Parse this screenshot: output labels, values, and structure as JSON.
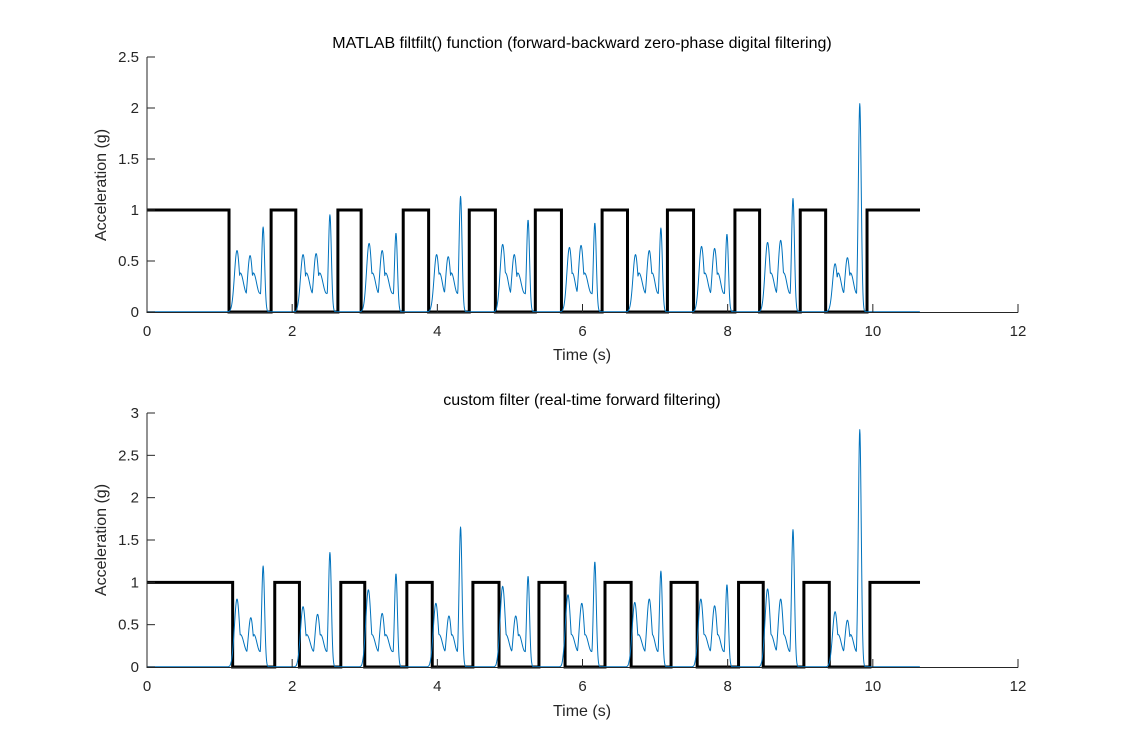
{
  "chart_data": [
    {
      "type": "line",
      "title": "MATLAB filtfilt() function (forward-backward zero-phase digital filtering)",
      "xlabel": "Time (s)",
      "ylabel": "Acceleration (g)",
      "xlim": [
        0,
        12
      ],
      "ylim": [
        0,
        2.5
      ],
      "xticks": [
        0,
        2,
        4,
        6,
        8,
        10,
        12
      ],
      "yticks": [
        0,
        0.5,
        1,
        1.5,
        2,
        2.5
      ],
      "xtick_labels": [
        "0",
        "2",
        "4",
        "6",
        "8",
        "10",
        "12"
      ],
      "ytick_labels": [
        "0",
        "0.5",
        "1",
        "1.5",
        "2",
        "2.5"
      ],
      "grid": false,
      "series": [
        {
          "style": "step",
          "color": "#000000",
          "x": [
            0,
            1.13,
            1.13,
            1.71,
            1.71,
            2.05,
            2.05,
            2.63,
            2.63,
            2.95,
            2.95,
            3.53,
            3.53,
            3.88,
            3.88,
            4.44,
            4.44,
            4.8,
            4.8,
            5.35,
            5.35,
            5.71,
            5.71,
            6.27,
            6.27,
            6.62,
            6.62,
            7.17,
            7.17,
            7.53,
            7.53,
            8.1,
            8.1,
            8.44,
            8.44,
            9.0,
            9.0,
            9.35,
            9.35,
            9.92,
            9.92,
            10.65
          ],
          "y": [
            1,
            1,
            0,
            0,
            1,
            1,
            0,
            0,
            1,
            1,
            0,
            0,
            1,
            1,
            0,
            0,
            1,
            1,
            0,
            0,
            1,
            1,
            0,
            0,
            1,
            1,
            0,
            0,
            1,
            1,
            0,
            0,
            1,
            1,
            0,
            0,
            1,
            1,
            0,
            0,
            1,
            1
          ]
        },
        {
          "style": "signal",
          "color": "#0072BD",
          "segments": [
            {
              "start": 1.13,
              "end": 1.71,
              "peaks": [
                [
                  1.24,
                  0.6
                ],
                [
                  1.42,
                  0.55
                ],
                [
                  1.6,
                  0.83
                ]
              ]
            },
            {
              "start": 2.05,
              "end": 2.63,
              "peaks": [
                [
                  2.15,
                  0.56
                ],
                [
                  2.33,
                  0.57
                ],
                [
                  2.52,
                  0.95
                ]
              ]
            },
            {
              "start": 2.95,
              "end": 3.53,
              "peaks": [
                [
                  3.06,
                  0.67
                ],
                [
                  3.24,
                  0.6
                ],
                [
                  3.43,
                  0.77
                ]
              ]
            },
            {
              "start": 3.88,
              "end": 4.44,
              "peaks": [
                [
                  3.99,
                  0.56
                ],
                [
                  4.15,
                  0.54
                ],
                [
                  4.32,
                  1.13
                ]
              ]
            },
            {
              "start": 4.8,
              "end": 5.35,
              "peaks": [
                [
                  4.9,
                  0.66
                ],
                [
                  5.06,
                  0.56
                ],
                [
                  5.25,
                  0.9
                ]
              ]
            },
            {
              "start": 5.71,
              "end": 6.27,
              "peaks": [
                [
                  5.82,
                  0.63
                ],
                [
                  5.98,
                  0.65
                ],
                [
                  6.17,
                  0.87
                ]
              ]
            },
            {
              "start": 6.62,
              "end": 7.17,
              "peaks": [
                [
                  6.73,
                  0.56
                ],
                [
                  6.92,
                  0.6
                ],
                [
                  7.08,
                  0.82
                ]
              ]
            },
            {
              "start": 7.53,
              "end": 8.1,
              "peaks": [
                [
                  7.64,
                  0.64
                ],
                [
                  7.82,
                  0.62
                ],
                [
                  7.99,
                  0.76
                ]
              ]
            },
            {
              "start": 8.44,
              "end": 9.0,
              "peaks": [
                [
                  8.55,
                  0.68
                ],
                [
                  8.73,
                  0.7
                ],
                [
                  8.9,
                  1.11
                ]
              ]
            },
            {
              "start": 9.35,
              "end": 9.92,
              "peaks": [
                [
                  9.48,
                  0.47
                ],
                [
                  9.65,
                  0.53
                ],
                [
                  9.82,
                  2.04
                ]
              ]
            }
          ]
        }
      ]
    },
    {
      "type": "line",
      "title": "custom filter (real-time forward filtering)",
      "xlabel": "Time (s)",
      "ylabel": "Acceleration (g)",
      "xlim": [
        0,
        12
      ],
      "ylim": [
        0,
        3
      ],
      "xticks": [
        0,
        2,
        4,
        6,
        8,
        10,
        12
      ],
      "yticks": [
        0,
        0.5,
        1,
        1.5,
        2,
        2.5,
        3
      ],
      "xtick_labels": [
        "0",
        "2",
        "4",
        "6",
        "8",
        "10",
        "12"
      ],
      "ytick_labels": [
        "0",
        "0.5",
        "1",
        "1.5",
        "2",
        "2.5",
        "3"
      ],
      "grid": false,
      "series": [
        {
          "style": "step",
          "color": "#000000",
          "x": [
            0,
            1.18,
            1.18,
            1.76,
            1.76,
            2.1,
            2.1,
            2.67,
            2.67,
            3.0,
            3.0,
            3.58,
            3.58,
            3.93,
            3.93,
            4.49,
            4.49,
            4.85,
            4.85,
            5.4,
            5.4,
            5.76,
            5.76,
            6.31,
            6.31,
            6.67,
            6.67,
            7.22,
            7.22,
            7.58,
            7.58,
            8.15,
            8.15,
            8.49,
            8.49,
            9.05,
            9.05,
            9.4,
            9.4,
            9.96,
            9.96,
            10.65
          ],
          "y": [
            1,
            1,
            0,
            0,
            1,
            1,
            0,
            0,
            1,
            1,
            0,
            0,
            1,
            1,
            0,
            0,
            1,
            1,
            0,
            0,
            1,
            1,
            0,
            0,
            1,
            1,
            0,
            0,
            1,
            1,
            0,
            0,
            1,
            1,
            0,
            0,
            1,
            1,
            0,
            0,
            1,
            1
          ]
        },
        {
          "style": "signal",
          "color": "#0072BD",
          "segments": [
            {
              "start": 1.13,
              "end": 1.71,
              "peaks": [
                [
                  1.24,
                  0.8
                ],
                [
                  1.43,
                  0.58
                ],
                [
                  1.6,
                  1.19
                ]
              ]
            },
            {
              "start": 2.05,
              "end": 2.63,
              "peaks": [
                [
                  2.15,
                  0.71
                ],
                [
                  2.35,
                  0.62
                ],
                [
                  2.52,
                  1.35
                ]
              ]
            },
            {
              "start": 2.95,
              "end": 3.53,
              "peaks": [
                [
                  3.05,
                  0.91
                ],
                [
                  3.24,
                  0.63
                ],
                [
                  3.43,
                  1.1
                ]
              ]
            },
            {
              "start": 3.88,
              "end": 4.44,
              "peaks": [
                [
                  3.98,
                  0.75
                ],
                [
                  4.16,
                  0.6
                ],
                [
                  4.32,
                  1.65
                ]
              ]
            },
            {
              "start": 4.8,
              "end": 5.35,
              "peaks": [
                [
                  4.9,
                  0.95
                ],
                [
                  5.08,
                  0.6
                ],
                [
                  5.25,
                  1.07
                ]
              ]
            },
            {
              "start": 5.71,
              "end": 6.27,
              "peaks": [
                [
                  5.8,
                  0.85
                ],
                [
                  5.99,
                  0.75
                ],
                [
                  6.17,
                  1.24
                ]
              ]
            },
            {
              "start": 6.62,
              "end": 7.17,
              "peaks": [
                [
                  6.72,
                  0.76
                ],
                [
                  6.92,
                  0.8
                ],
                [
                  7.08,
                  1.13
                ]
              ]
            },
            {
              "start": 7.53,
              "end": 8.1,
              "peaks": [
                [
                  7.63,
                  0.8
                ],
                [
                  7.82,
                  0.72
                ],
                [
                  7.99,
                  0.97
                ]
              ]
            },
            {
              "start": 8.44,
              "end": 9.0,
              "peaks": [
                [
                  8.55,
                  0.92
                ],
                [
                  8.73,
                  0.8
                ],
                [
                  8.9,
                  1.62
                ]
              ]
            },
            {
              "start": 9.35,
              "end": 9.92,
              "peaks": [
                [
                  9.48,
                  0.65
                ],
                [
                  9.65,
                  0.55
                ],
                [
                  9.82,
                  2.8
                ]
              ]
            }
          ]
        }
      ]
    }
  ]
}
